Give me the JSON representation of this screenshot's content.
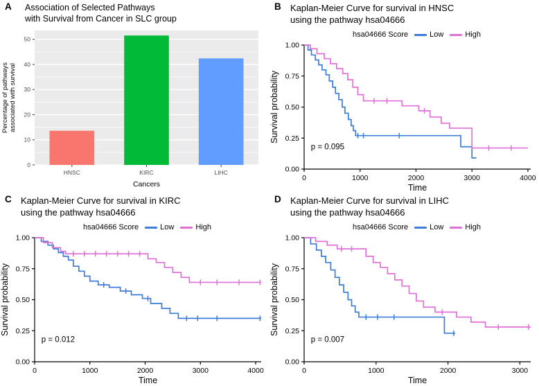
{
  "chart_data": [
    {
      "letter": "A",
      "type": "bar",
      "title": "Association of Selected Pathways\nwith Survival from Cancer in SLC group",
      "xlabel": "Cancers",
      "ylabel": "Percentage of pathways\nassociated with survival",
      "categories": [
        "HNSC",
        "KIRC",
        "LIHC"
      ],
      "values": [
        13.6,
        51.5,
        42.4
      ],
      "bar_colors": [
        "#F8766D",
        "#00BA38",
        "#619CFF"
      ],
      "ylim": [
        0,
        53.5
      ],
      "yticks": [
        0,
        10,
        20,
        30,
        40,
        50
      ],
      "panel_bg": "#EBEBEB",
      "grid_color": "#FFFFFF",
      "tick_label_color": "#4D4D4D"
    },
    {
      "letter": "B",
      "type": "km",
      "title": "Kaplan-Meier Curve for survival in HNSC\nusing the pathway hsa04666",
      "legend_title": "hsa04666 Score",
      "xlabel": "Time",
      "ylabel": "Survival probability",
      "p_label": "p = 0.095",
      "xlim": [
        0,
        4050
      ],
      "xticks": [
        0,
        1000,
        2000,
        3000,
        4000
      ],
      "ylim": [
        0,
        1
      ],
      "yticks": [
        "0.00",
        "0.25",
        "0.50",
        "0.75",
        "1.00"
      ],
      "series": [
        {
          "name": "Low",
          "color": "#3B7DD8",
          "points": [
            [
              0,
              1.0
            ],
            [
              70,
              0.96
            ],
            [
              130,
              0.92
            ],
            [
              200,
              0.88
            ],
            [
              260,
              0.84
            ],
            [
              320,
              0.8
            ],
            [
              390,
              0.76
            ],
            [
              450,
              0.71
            ],
            [
              510,
              0.66
            ],
            [
              560,
              0.61
            ],
            [
              620,
              0.56
            ],
            [
              680,
              0.5
            ],
            [
              730,
              0.45
            ],
            [
              790,
              0.4
            ],
            [
              840,
              0.35
            ],
            [
              880,
              0.31
            ],
            [
              920,
              0.27
            ],
            [
              2800,
              0.18
            ],
            [
              3000,
              0.09
            ],
            [
              3080,
              0.09
            ]
          ],
          "censors": [
            960,
            1060,
            1700
          ]
        },
        {
          "name": "High",
          "color": "#E06FD8",
          "points": [
            [
              0,
              1.0
            ],
            [
              110,
              0.97
            ],
            [
              230,
              0.93
            ],
            [
              360,
              0.89
            ],
            [
              470,
              0.85
            ],
            [
              580,
              0.81
            ],
            [
              690,
              0.77
            ],
            [
              780,
              0.72
            ],
            [
              870,
              0.66
            ],
            [
              960,
              0.6
            ],
            [
              1060,
              0.55
            ],
            [
              1750,
              0.51
            ],
            [
              2050,
              0.47
            ],
            [
              2250,
              0.42
            ],
            [
              2450,
              0.37
            ],
            [
              2600,
              0.33
            ],
            [
              3000,
              0.17
            ],
            [
              4000,
              0.17
            ]
          ],
          "censors": [
            1250,
            1480,
            2150,
            3300,
            3700
          ]
        }
      ]
    },
    {
      "letter": "C",
      "type": "km",
      "title": "Kaplan-Meier Curve for survival in KIRC\nusing the pathway hsa04666",
      "legend_title": "hsa04666 Score",
      "xlabel": "Time",
      "ylabel": "Survival probability",
      "p_label": "p = 0.012",
      "xlim": [
        0,
        4100
      ],
      "xticks": [
        0,
        1000,
        2000,
        3000,
        4000
      ],
      "ylim": [
        0,
        1
      ],
      "yticks": [
        "0.00",
        "0.25",
        "0.50",
        "0.75",
        "1.00"
      ],
      "series": [
        {
          "name": "Low",
          "color": "#3B7DD8",
          "points": [
            [
              0,
              1.0
            ],
            [
              120,
              0.97
            ],
            [
              240,
              0.94
            ],
            [
              340,
              0.91
            ],
            [
              430,
              0.88
            ],
            [
              520,
              0.85
            ],
            [
              610,
              0.82
            ],
            [
              700,
              0.77
            ],
            [
              800,
              0.73
            ],
            [
              900,
              0.69
            ],
            [
              1000,
              0.65
            ],
            [
              1150,
              0.62
            ],
            [
              1350,
              0.6
            ],
            [
              1550,
              0.57
            ],
            [
              1750,
              0.54
            ],
            [
              1950,
              0.51
            ],
            [
              2100,
              0.47
            ],
            [
              2300,
              0.43
            ],
            [
              2450,
              0.39
            ],
            [
              2600,
              0.35
            ],
            [
              4100,
              0.35
            ]
          ],
          "censors": [
            1250,
            1650,
            2050,
            2750,
            2950,
            3300,
            4080
          ]
        },
        {
          "name": "High",
          "color": "#E06FD8",
          "points": [
            [
              0,
              1.0
            ],
            [
              160,
              0.96
            ],
            [
              320,
              0.92
            ],
            [
              470,
              0.89
            ],
            [
              560,
              0.87
            ],
            [
              2050,
              0.83
            ],
            [
              2200,
              0.8
            ],
            [
              2350,
              0.76
            ],
            [
              2500,
              0.72
            ],
            [
              2650,
              0.68
            ],
            [
              2800,
              0.64
            ],
            [
              4100,
              0.64
            ]
          ],
          "censors": [
            700,
            900,
            1100,
            1300,
            1500,
            1700,
            1900,
            3000,
            3300,
            3700,
            4080
          ]
        }
      ]
    },
    {
      "letter": "D",
      "type": "km",
      "title": "Kaplan-Meier Curve for survival in LIHC\nusing the pathway hsa04666",
      "legend_title": "hsa04666 Score",
      "xlabel": "Time",
      "ylabel": "Survival probability",
      "p_label": "p = 0.007",
      "xlim": [
        0,
        3150
      ],
      "xticks": [
        0,
        1000,
        2000,
        3000
      ],
      "ylim": [
        0,
        1
      ],
      "yticks": [
        "0.00",
        "0.25",
        "0.50",
        "0.75",
        "1.00"
      ],
      "series": [
        {
          "name": "Low",
          "color": "#3B7DD8",
          "points": [
            [
              0,
              1.0
            ],
            [
              90,
              0.95
            ],
            [
              170,
              0.9
            ],
            [
              240,
              0.85
            ],
            [
              300,
              0.8
            ],
            [
              370,
              0.74
            ],
            [
              430,
              0.68
            ],
            [
              490,
              0.62
            ],
            [
              550,
              0.56
            ],
            [
              610,
              0.5
            ],
            [
              660,
              0.45
            ],
            [
              710,
              0.4
            ],
            [
              760,
              0.36
            ],
            [
              1950,
              0.23
            ],
            [
              2100,
              0.23
            ]
          ],
          "censors": [
            860,
            1020,
            1250,
            2080
          ]
        },
        {
          "name": "High",
          "color": "#E06FD8",
          "points": [
            [
              0,
              1.0
            ],
            [
              160,
              0.97
            ],
            [
              320,
              0.94
            ],
            [
              460,
              0.91
            ],
            [
              860,
              0.85
            ],
            [
              960,
              0.8
            ],
            [
              1060,
              0.76
            ],
            [
              1160,
              0.71
            ],
            [
              1260,
              0.66
            ],
            [
              1360,
              0.61
            ],
            [
              1460,
              0.55
            ],
            [
              1560,
              0.49
            ],
            [
              1660,
              0.44
            ],
            [
              1820,
              0.4
            ],
            [
              2120,
              0.36
            ],
            [
              2320,
              0.32
            ],
            [
              2520,
              0.28
            ],
            [
              3150,
              0.28
            ]
          ],
          "censors": [
            520,
            660,
            1920,
            2700,
            3120
          ]
        }
      ]
    }
  ],
  "legend": {
    "low_label": "Low",
    "high_label": "High"
  }
}
